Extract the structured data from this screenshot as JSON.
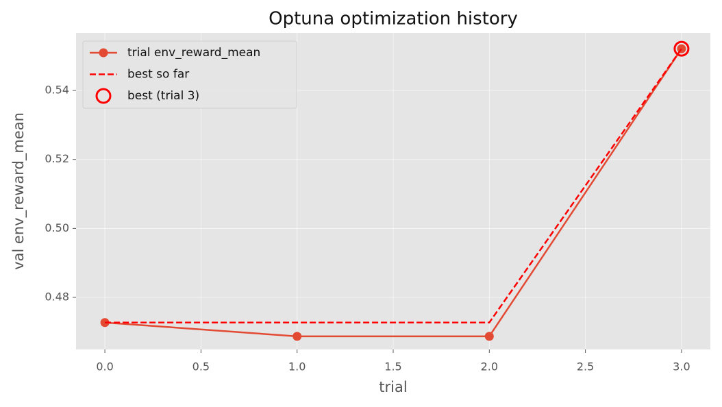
{
  "chart_data": {
    "type": "line",
    "title": "Optuna optimization history",
    "xlabel": "trial",
    "ylabel": "val env_reward_mean",
    "x": [
      0,
      1,
      2,
      3
    ],
    "series": [
      {
        "name": "trial env_reward_mean",
        "color": "#e24a33",
        "values": [
          0.4727,
          0.4687,
          0.4687,
          0.5521
        ],
        "marker": "o",
        "linestyle": "solid"
      },
      {
        "name": "best so far",
        "color": "#ff0000",
        "values": [
          0.4727,
          0.4727,
          0.4727,
          0.5521
        ],
        "linestyle": "dashed"
      },
      {
        "name": "best (trial 3)",
        "type": "scatter",
        "color": "#ff0000",
        "x": [
          3
        ],
        "values": [
          0.5521
        ],
        "marker": "hollow-circle"
      }
    ],
    "xlim": [
      -0.15,
      3.15
    ],
    "ylim": [
      0.4649,
      0.5567
    ],
    "xticks": [
      {
        "value": 0,
        "label": "0.0"
      },
      0.5,
      {
        "value": 1,
        "label": "1.0"
      },
      1.5,
      {
        "value": 2,
        "label": "2.0"
      },
      2.5,
      {
        "value": 3,
        "label": "3.0"
      }
    ],
    "yticks": [
      0.48,
      {
        "value": 0.5,
        "label": "0.50"
      },
      0.52,
      0.54
    ],
    "grid": true,
    "legend": "upper left",
    "background": "#e5e5e5"
  }
}
